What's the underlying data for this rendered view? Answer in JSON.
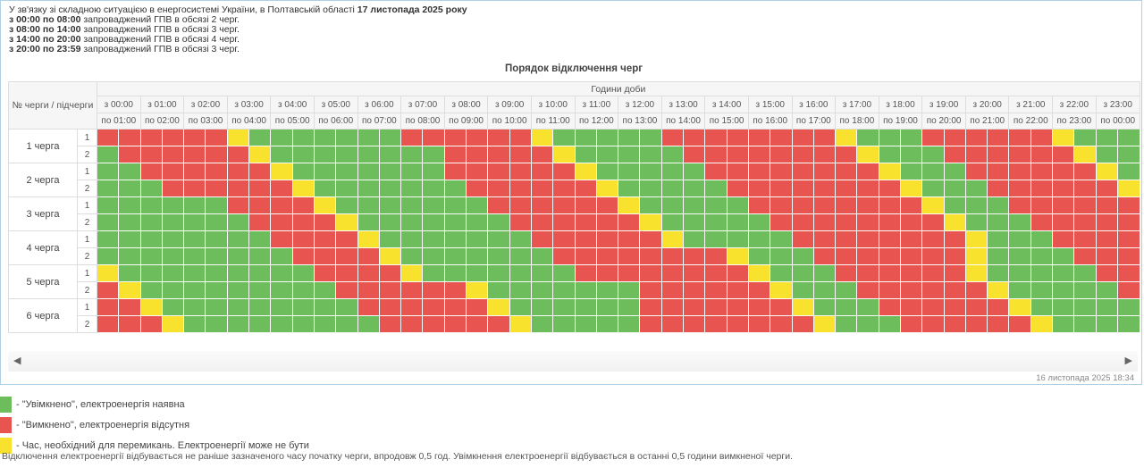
{
  "colors": {
    "on": "#6dbd5c",
    "off": "#e8544f",
    "sw": "#f8e22e",
    "panel": "#aed1e6"
  },
  "intro": {
    "line1_text": "У зв'язку зі складною ситуацією в енергосистемі України, в Полтавській області ",
    "line1_bold": "17 листопада 2025 року",
    "lines": [
      {
        "bold": "з 00:00 по 08:00",
        "text": " запроваджений ГПВ в обсязі 2 черг."
      },
      {
        "bold": "з 08:00 по 14:00",
        "text": " запроваджений ГПВ в обсязі 3 черг."
      },
      {
        "bold": "з 14:00 по 20:00",
        "text": " запроваджений ГПВ в обсязі 4 черг."
      },
      {
        "bold": "з 20:00 по 23:59",
        "text": " запроваджений ГПВ в обсязі 3 черг."
      }
    ]
  },
  "table": {
    "title": "Порядок відключення черг",
    "corner_label": "№ черги / підчерги",
    "hours_group_label": "Години доби",
    "columns": [
      {
        "from": "з 00:00",
        "to": "по 01:00"
      },
      {
        "from": "з 01:00",
        "to": "по 02:00"
      },
      {
        "from": "з 02:00",
        "to": "по 03:00"
      },
      {
        "from": "з 03:00",
        "to": "по 04:00"
      },
      {
        "from": "з 04:00",
        "to": "по 05:00"
      },
      {
        "from": "з 05:00",
        "to": "по 06:00"
      },
      {
        "from": "з 06:00",
        "to": "по 07:00"
      },
      {
        "from": "з 07:00",
        "to": "по 08:00"
      },
      {
        "from": "з 08:00",
        "to": "по 09:00"
      },
      {
        "from": "з 09:00",
        "to": "по 10:00"
      },
      {
        "from": "з 10:00",
        "to": "по 11:00"
      },
      {
        "from": "з 11:00",
        "to": "по 12:00"
      },
      {
        "from": "з 12:00",
        "to": "по 13:00"
      },
      {
        "from": "з 13:00",
        "to": "по 14:00"
      },
      {
        "from": "з 14:00",
        "to": "по 15:00"
      },
      {
        "from": "з 15:00",
        "to": "по 16:00"
      },
      {
        "from": "з 16:00",
        "to": "по 17:00"
      },
      {
        "from": "з 17:00",
        "to": "по 18:00"
      },
      {
        "from": "з 18:00",
        "to": "по 19:00"
      },
      {
        "from": "з 19:00",
        "to": "по 20:00"
      },
      {
        "from": "з 20:00",
        "to": "по 21:00"
      },
      {
        "from": "з 21:00",
        "to": "по 22:00"
      },
      {
        "from": "з 22:00",
        "to": "по 23:00"
      },
      {
        "from": "з 23:00",
        "to": "по 00:00"
      }
    ],
    "queues": [
      {
        "label": "1 черга",
        "sub_rows": [
          {
            "num": "1",
            "cells": "RRRRRRYGGGGGGGRRRRRRYGGGGGRRRRRRRRYGGGRRRRRRYGGG"
          },
          {
            "num": "2",
            "cells": "GRRRRRRYGGGGGGGGRRRRRYGGGGGRRRRRRRRYGGGRRRRRRYGG"
          }
        ]
      },
      {
        "label": "2 черга",
        "sub_rows": [
          {
            "num": "1",
            "cells": "GGRRRRRRYGGGGGGGRRRRRRYGGGGGRRRRRRRRYGGGRRRRRRYG"
          },
          {
            "num": "2",
            "cells": "GGGRRRRRRYGGGGGGGRRRRRRYGGGGGRRRRRRRRYGGGRRRRRRY"
          }
        ]
      },
      {
        "label": "3 черга",
        "sub_rows": [
          {
            "num": "1",
            "cells": "GGGGGGRRRRYGGGGGGGRRRRRRYGGGGGRRRRRRRRYGGGRRRRRR"
          },
          {
            "num": "2",
            "cells": "GGGGGGGRRRRYGGGGGGGRRRRRRYGGGGGRRRRRRRRYGGGRRRRR"
          }
        ]
      },
      {
        "label": "4 черга",
        "sub_rows": [
          {
            "num": "1",
            "cells": "GGGGGGGGRRRRYGGGGGGGRRRRRRYGGGGGRRRRRRRRYGGGRRRR"
          },
          {
            "num": "2",
            "cells": "GGGGGGGGGRRRRYGGGGGGGRRRRRRRRYGGGRRRRRRRYGGGGRRR"
          }
        ]
      },
      {
        "label": "5 черга",
        "sub_rows": [
          {
            "num": "1",
            "cells": "YGGGGGGGGGRRRRYGGGGGGGRRRRRRRRYGGGRRRRRRYGGGGGRR"
          },
          {
            "num": "2",
            "cells": "RYGGGGGGGGGRRRRRRYGGGGGGGRRRRRRYGGGRRRRRRYGGGGGR"
          }
        ]
      },
      {
        "label": "6 черга",
        "sub_rows": [
          {
            "num": "1",
            "cells": "RRYGGGGGGGGGRRRRRRYGGGGGGRRRRRRRYGGGRRRRRRYGGGGG"
          },
          {
            "num": "2",
            "cells": "RRRYGGGGGGGGGRRRRRRYGGGGGRRRRRRRRYGGGRRRRRRYGGGG"
          }
        ]
      }
    ]
  },
  "scrollbar": {
    "left_arrow": "◀",
    "right_arrow": "▶"
  },
  "footer": {
    "timestamp": "16 листопада 2025 18:34"
  },
  "legend": {
    "items": [
      {
        "color": "on",
        "text": "- \"Увімкнено\", електроенергія наявна"
      },
      {
        "color": "off",
        "text": "- \"Вимкнено\", електроенергія відсутня"
      },
      {
        "color": "sw",
        "text": "- Час, необхідний для перемикань. Електроенергії може не бути"
      }
    ]
  },
  "note": "Відключення електроенергії відбувається не раніше зазначеного часу початку черги, впродовж 0,5 год. Увімкнення електроенергії відбувається в останні 0,5 години вимкненої черги."
}
